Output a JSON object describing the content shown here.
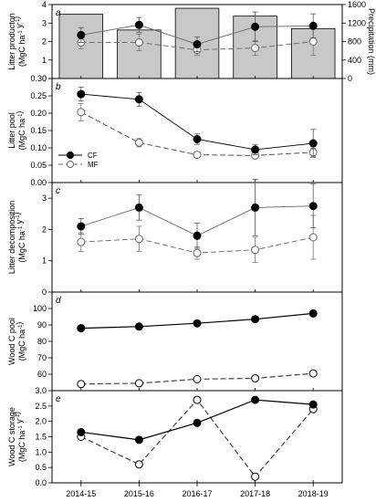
{
  "chart_data": [
    {
      "panel_label": "a",
      "type": "bar+line",
      "categories": [
        "2014-15",
        "2015-16",
        "2016-17",
        "2017-18",
        "2018-19"
      ],
      "ylabel": "Litter producton",
      "yunit": "(MgC ha-1 y-1)",
      "ylim": [
        0,
        4
      ],
      "yticks": [
        0,
        1,
        2,
        3,
        4
      ],
      "y2label": "Precipitation (mm)",
      "y2lim": [
        0,
        1600
      ],
      "y2ticks": [
        0,
        400,
        800,
        1200,
        1600
      ],
      "bars": {
        "values": [
          1390,
          1050,
          1520,
          1350,
          1080
        ],
        "color": "#c8c8c8"
      },
      "series": [
        {
          "name": "CF",
          "values": [
            2.35,
            2.9,
            1.85,
            2.8,
            2.85
          ],
          "err": [
            0.4,
            0.4,
            0.4,
            0.8,
            0.65
          ],
          "style": "solid",
          "marker": "filled"
        },
        {
          "name": "MF",
          "values": [
            1.95,
            1.95,
            1.55,
            1.65,
            2.0
          ],
          "err": [
            0.35,
            0.45,
            0.3,
            0.4,
            0.75
          ],
          "style": "dashed",
          "marker": "open"
        }
      ]
    },
    {
      "panel_label": "b",
      "type": "line",
      "categories": [
        "2014-15",
        "2015-16",
        "2016-17",
        "2017-18",
        "2018-19"
      ],
      "ylabel": "Litter pool",
      "yunit": "(MgC ha-1)",
      "ylim": [
        0,
        0.3
      ],
      "yticks": [
        0.0,
        0.05,
        0.1,
        0.15,
        0.2,
        0.25,
        0.3
      ],
      "legend": {
        "position": "bottom-left",
        "entries": [
          "CF",
          "MF"
        ]
      },
      "series": [
        {
          "name": "CF",
          "values": [
            0.255,
            0.24,
            0.125,
            0.095,
            0.113
          ],
          "err": [
            0.02,
            0.02,
            0.015,
            0.015,
            0.04
          ],
          "style": "solid",
          "marker": "filled"
        },
        {
          "name": "MF",
          "values": [
            0.203,
            0.115,
            0.08,
            0.078,
            0.087
          ],
          "err": [
            0.025,
            0.012,
            0.008,
            0.01,
            0.012
          ],
          "style": "dashed",
          "marker": "open"
        }
      ]
    },
    {
      "panel_label": "c",
      "type": "line",
      "categories": [
        "2014-15",
        "2015-16",
        "2016-17",
        "2017-18",
        "2018-19"
      ],
      "ylabel": "Litter decomposition",
      "yunit": "(MgC ha-1 y-1)",
      "ylim": [
        0,
        3.5
      ],
      "yticks": [
        0,
        1,
        2,
        3
      ],
      "series": [
        {
          "name": "CF",
          "values": [
            2.1,
            2.7,
            1.8,
            2.7,
            2.75
          ],
          "err": [
            0.25,
            0.4,
            0.4,
            0.9,
            0.7
          ],
          "style": "solid",
          "marker": "filled"
        },
        {
          "name": "MF",
          "values": [
            1.6,
            1.7,
            1.25,
            1.35,
            1.75
          ],
          "err": [
            0.3,
            0.4,
            0.2,
            0.4,
            0.7
          ],
          "style": "dashed",
          "marker": "open"
        }
      ]
    },
    {
      "panel_label": "d",
      "type": "line",
      "categories": [
        "2014-15",
        "2015-16",
        "2016-17",
        "2017-18",
        "2018-19"
      ],
      "ylabel": "Wood C pool",
      "yunit": "(MgC ha-1)",
      "ylim": [
        50,
        110
      ],
      "yticks": [
        60,
        70,
        80,
        90,
        100
      ],
      "series": [
        {
          "name": "CF",
          "values": [
            88,
            89,
            91,
            93.5,
            97
          ],
          "style": "solid",
          "marker": "filled"
        },
        {
          "name": "MF",
          "values": [
            54,
            54.5,
            57,
            57.5,
            60.5
          ],
          "style": "dashed",
          "marker": "open"
        }
      ]
    },
    {
      "panel_label": "e",
      "type": "line",
      "categories": [
        "2014-15",
        "2015-16",
        "2016-17",
        "2017-18",
        "2018-19"
      ],
      "ylabel": "Wood C storage",
      "yunit": "(MgC ha-1 y-1)",
      "ylim": [
        0,
        3.0
      ],
      "yticks": [
        0.0,
        0.5,
        1.0,
        1.5,
        2.0,
        2.5,
        3.0
      ],
      "series": [
        {
          "name": "CF",
          "values": [
            1.65,
            1.4,
            1.95,
            2.7,
            2.55
          ],
          "style": "solid",
          "marker": "filled"
        },
        {
          "name": "MF",
          "values": [
            1.5,
            0.6,
            2.7,
            0.2,
            2.4
          ],
          "style": "dashed",
          "marker": "open"
        }
      ]
    }
  ]
}
